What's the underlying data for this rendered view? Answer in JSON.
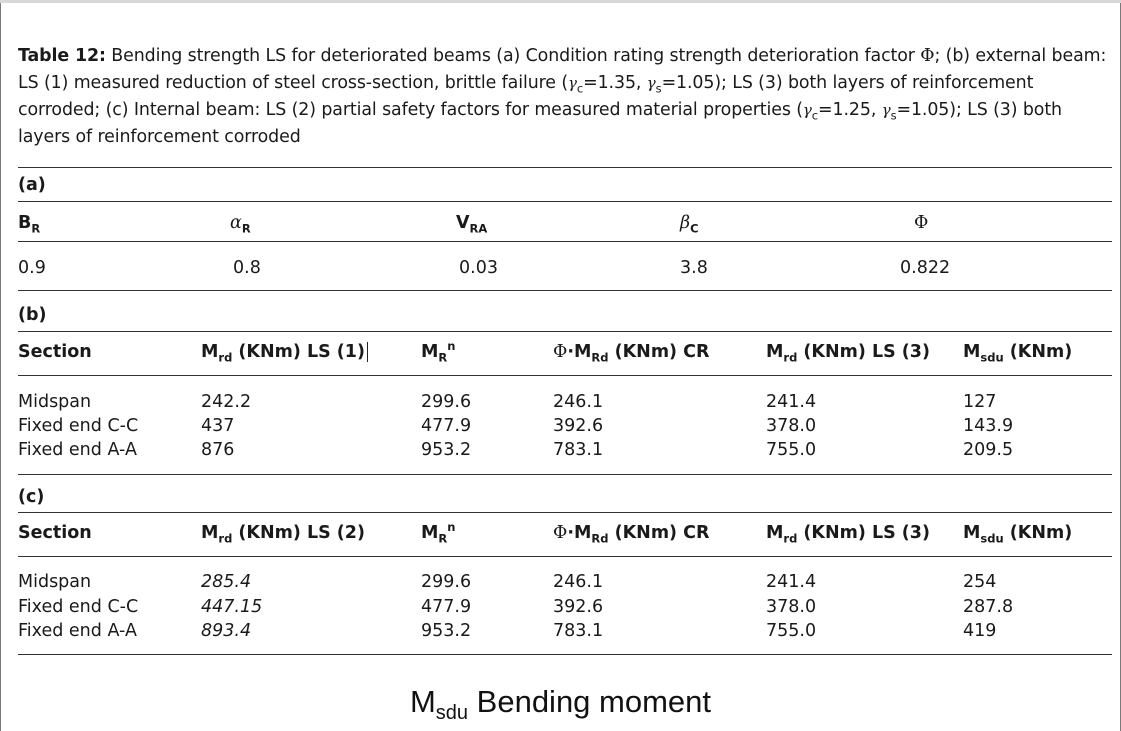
{
  "caption": {
    "label": "Table 12:",
    "text_1": " Bending strength LS for deteriorated beams (a) Condition rating strength deterioration factor ",
    "phi": "Φ",
    "text_2": "; (b) external beam: LS (1) measured reduction of steel cross-section, brittle failure (",
    "gc_sym": "γ",
    "gc_sub": "c",
    "gc_val_b": "=1.35, ",
    "gs_sym": "γ",
    "gs_sub": "s",
    "gs_val_b": "=1.05); LS (3) both layers of reinforcement corroded; (c) Internal beam: LS (2) partial safety factors for measured material properties (",
    "gc_val_c": "=1.25, ",
    "gs_val_c": "=1.05); LS (3) both layers of reinforcement corroded"
  },
  "section_a": {
    "label": "(a)",
    "headers": {
      "br_main": "B",
      "br_sub": "R",
      "ar_main": "α",
      "ar_sub": "R",
      "vra_main": "V",
      "vra_sub": "RA",
      "bc_main": "β",
      "bc_sub": "C",
      "phi": "Φ"
    },
    "values": [
      "0.9",
      "0.8",
      "0.03",
      "3.8",
      "0.822"
    ]
  },
  "section_b": {
    "label": "(b)",
    "headers": {
      "section": "Section",
      "mrd1_main": "M",
      "mrd1_sub": "rd",
      "mrd1_rest": " (KNm) LS (1)",
      "mrn_main": "M",
      "mrn_sub": "R",
      "mrn_sup": "n",
      "phimrd_phi": "Φ",
      "phimrd_main": "·M",
      "phimrd_sub": "Rd",
      "phimrd_rest": " (KNm) CR",
      "mrd3_main": "M",
      "mrd3_sub": "rd",
      "mrd3_rest": " (KNm) LS (3)",
      "msdu_main": "M",
      "msdu_sub": "sdu",
      "msdu_rest": " (KNm)"
    },
    "rows": [
      [
        "Midspan",
        "242.2",
        "299.6",
        "246.1",
        "241.4",
        "127"
      ],
      [
        "Fixed end C-C",
        "437",
        "477.9",
        "392.6",
        "378.0",
        "143.9"
      ],
      [
        "Fixed end A-A",
        "876",
        "953.2",
        "783.1",
        "755.0",
        "209.5"
      ]
    ]
  },
  "section_c": {
    "label": "(c)",
    "headers": {
      "section": "Section",
      "mrd2_main": "M",
      "mrd2_sub": "rd",
      "mrd2_rest": " (KNm) LS (2)",
      "mrn_main": "M",
      "mrn_sub": "R",
      "mrn_sup": "n",
      "phimrd_phi": "Φ",
      "phimrd_main": "·M",
      "phimrd_sub": "Rd",
      "phimrd_rest": " (KNm) CR",
      "mrd3_main": "M",
      "mrd3_sub": "rd",
      "mrd3_rest": " (KNm) LS (3)",
      "msdu_main": "M",
      "msdu_sub": "sdu",
      "msdu_rest": " (KNm)"
    },
    "rows": [
      [
        "Midspan",
        "285.4",
        "299.6",
        "246.1",
        "241.4",
        "254"
      ],
      [
        "Fixed end C-C",
        "447.15",
        "477.9",
        "392.6",
        "378.0",
        "287.8"
      ],
      [
        "Fixed end A-A",
        "893.4",
        "953.2",
        "783.1",
        "755.0",
        "419"
      ]
    ]
  },
  "footer": {
    "main": "M",
    "sub": "sdu",
    "rest": " Bending moment"
  }
}
